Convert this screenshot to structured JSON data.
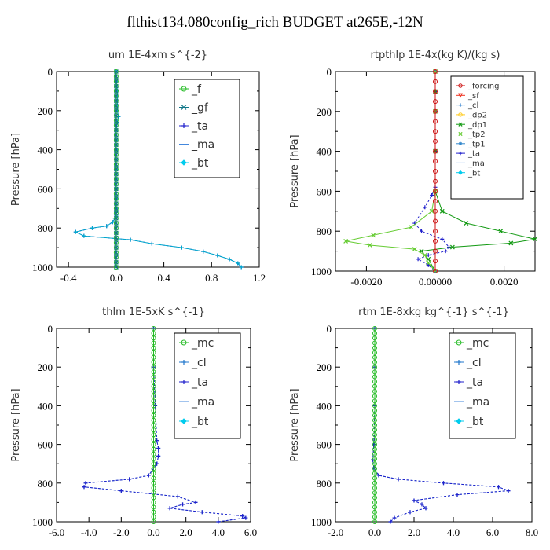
{
  "title": "flthist134.080config_rich  BUDGET at265E,-12N",
  "chart_data": [
    {
      "type": "line",
      "title": "um   1E-4xm s^{-2}",
      "ylabel": "Pressure [hPa]",
      "xlim": [
        -0.5,
        1.2
      ],
      "ylim": [
        1000,
        0
      ],
      "xticks": [
        -0.4,
        0.0,
        0.4,
        0.8,
        1.2
      ],
      "xtick_labels": [
        "-0.4",
        "0.0",
        "0.4",
        "0.8",
        "1.2"
      ],
      "yticks": [
        0,
        200,
        400,
        600,
        800,
        1000
      ],
      "ytick_labels": [
        "0",
        "200",
        "400",
        "600",
        "800",
        "1000"
      ],
      "legend": [
        "_f",
        "_gf",
        "_ta",
        "_ma",
        "_bt"
      ],
      "legend_position": "top-right",
      "series": [
        {
          "name": "_ta",
          "color": "#2020cc",
          "dash": true,
          "marker": "plus",
          "x": [
            0.0,
            0.0,
            0.01,
            0.01,
            0.01,
            0.02,
            0.01,
            0.0,
            0.0,
            0.0,
            0.0,
            0.0,
            0.0,
            0.0,
            0.0,
            0.0,
            0.0,
            0.0,
            0.0,
            -0.01,
            -0.03,
            -0.08,
            -0.2,
            -0.34,
            -0.27,
            0.12,
            0.3,
            0.55,
            0.73,
            0.85,
            0.95,
            1.02,
            1.05
          ],
          "y": [
            0,
            50,
            100,
            150,
            200,
            230,
            260,
            300,
            350,
            400,
            450,
            500,
            550,
            600,
            650,
            680,
            700,
            720,
            740,
            750,
            770,
            790,
            800,
            820,
            840,
            860,
            880,
            900,
            920,
            940,
            960,
            980,
            1000
          ]
        },
        {
          "name": "_bt",
          "color": "#00aacc",
          "dash": false,
          "marker": "plus",
          "x": [
            0.0,
            0.0,
            0.01,
            0.01,
            0.01,
            0.02,
            0.01,
            0.0,
            0.0,
            0.0,
            0.0,
            0.0,
            0.0,
            0.0,
            0.0,
            0.0,
            0.0,
            0.0,
            0.0,
            -0.01,
            -0.03,
            -0.08,
            -0.2,
            -0.34,
            -0.27,
            0.12,
            0.3,
            0.55,
            0.73,
            0.85,
            0.95,
            1.02,
            1.05
          ],
          "y": [
            0,
            50,
            100,
            150,
            200,
            230,
            260,
            300,
            350,
            400,
            450,
            500,
            550,
            600,
            650,
            680,
            700,
            720,
            740,
            750,
            770,
            790,
            800,
            820,
            840,
            860,
            880,
            900,
            920,
            940,
            960,
            980,
            1000
          ]
        },
        {
          "name": "_f",
          "color": "#22bb22",
          "dash": false,
          "marker": "circle",
          "x": [
            0,
            0,
            0,
            0,
            0,
            0,
            0,
            0,
            0,
            0,
            0,
            0,
            0,
            0,
            0,
            0,
            0,
            0,
            0,
            0,
            0,
            0,
            0,
            0,
            0,
            0,
            0,
            0,
            0,
            0,
            0,
            0,
            0,
            0,
            0,
            0,
            0,
            0,
            0,
            0,
            0
          ],
          "y": [
            0,
            25,
            50,
            75,
            100,
            125,
            150,
            175,
            200,
            225,
            250,
            275,
            300,
            325,
            350,
            375,
            400,
            425,
            450,
            475,
            500,
            525,
            550,
            575,
            600,
            625,
            650,
            675,
            700,
            725,
            750,
            775,
            800,
            825,
            850,
            875,
            900,
            925,
            950,
            975,
            1000
          ]
        },
        {
          "name": "_gf",
          "color": "#117788",
          "dash": false,
          "marker": "cross",
          "x": [
            0,
            0,
            0,
            0,
            0,
            0,
            0,
            0,
            0,
            0,
            0,
            0,
            0,
            0,
            0,
            0,
            0,
            0,
            0,
            0,
            0,
            0,
            0,
            0,
            0,
            0,
            0,
            0,
            0,
            0,
            0,
            0,
            0,
            0,
            0,
            0,
            0,
            0,
            0,
            0,
            0
          ],
          "y": [
            0,
            25,
            50,
            75,
            100,
            125,
            150,
            175,
            200,
            225,
            250,
            275,
            300,
            325,
            350,
            375,
            400,
            425,
            450,
            475,
            500,
            525,
            550,
            575,
            600,
            625,
            650,
            675,
            700,
            725,
            750,
            775,
            800,
            825,
            850,
            875,
            900,
            925,
            950,
            975,
            1000
          ]
        }
      ]
    },
    {
      "type": "line",
      "title": "rtpthlp   1E-4x(kg K)/(kg s)",
      "ylabel": "Pressure [hPa]",
      "xlim": [
        -0.0029,
        0.0029
      ],
      "ylim": [
        1000,
        0
      ],
      "xticks": [
        -0.002,
        0.0,
        0.002
      ],
      "xtick_labels": [
        "-0.0020",
        "0.00000",
        "0.0020"
      ],
      "yticks": [
        0,
        200,
        400,
        600,
        800,
        1000
      ],
      "ytick_labels": [
        "0",
        "200",
        "400",
        "600",
        "800",
        "1000"
      ],
      "legend": [
        "_forcing",
        "_sf",
        "_cl",
        "_dp2",
        "_dp1",
        "_tp2",
        "_tp1",
        "_ta",
        "_ma",
        "_bt"
      ],
      "legend_position": "top-right",
      "series": [
        {
          "name": "_ta",
          "color": "#2020cc",
          "dash": true,
          "marker": "plus",
          "x": [
            0,
            0,
            0,
            0,
            0,
            -0.0001,
            -0.0003,
            -0.0006,
            -0.0004,
            0.0002,
            0.0004,
            0.0003,
            -0.0002,
            -0.0005,
            -0.0002,
            0.0
          ],
          "y": [
            0,
            100,
            200,
            400,
            580,
            620,
            680,
            760,
            800,
            840,
            880,
            900,
            920,
            940,
            970,
            1000
          ]
        },
        {
          "name": "_dp1",
          "color": "#119911",
          "dash": false,
          "marker": "cross",
          "x": [
            0,
            0,
            0,
            0,
            0,
            0.0002,
            0.0009,
            0.0019,
            0.0029,
            0.0022,
            0.0005,
            -0.0004,
            -0.0002,
            0.0
          ],
          "y": [
            0,
            100,
            200,
            400,
            600,
            700,
            760,
            800,
            840,
            860,
            880,
            900,
            940,
            1000
          ]
        },
        {
          "name": "_tp2",
          "color": "#66cc33",
          "dash": false,
          "marker": "cross",
          "x": [
            0,
            0,
            0,
            -0.0001,
            -0.0007,
            -0.0018,
            -0.0026,
            -0.0019,
            -0.0006,
            -0.0003,
            -0.0002,
            0.0
          ],
          "y": [
            0,
            200,
            600,
            700,
            780,
            820,
            850,
            870,
            890,
            920,
            960,
            1000
          ]
        },
        {
          "name": "_forcing",
          "color": "#cc1111",
          "dash": false,
          "marker": "circle",
          "x": [
            0,
            0,
            0,
            0,
            0,
            0,
            0,
            0,
            0,
            0,
            0,
            0,
            0,
            0,
            0,
            0,
            0,
            0,
            0,
            0,
            0
          ],
          "y": [
            0,
            50,
            100,
            150,
            200,
            250,
            300,
            350,
            400,
            450,
            500,
            550,
            600,
            650,
            700,
            750,
            800,
            850,
            900,
            950,
            1000
          ]
        }
      ]
    },
    {
      "type": "line",
      "title": "thlm   1E-5xK s^{-1}",
      "ylabel": "Pressure [hPa]",
      "xlim": [
        -6.0,
        6.0
      ],
      "ylim": [
        1000,
        0
      ],
      "xticks": [
        -6,
        -4,
        -2,
        0,
        2,
        4,
        6
      ],
      "xtick_labels": [
        "-6.0",
        "-4.0",
        "-2.0",
        "0.0",
        "2.0",
        "4.0",
        "6.0"
      ],
      "yticks": [
        0,
        200,
        400,
        600,
        800,
        1000
      ],
      "ytick_labels": [
        "0",
        "200",
        "400",
        "600",
        "800",
        "1000"
      ],
      "legend": [
        "_mc",
        "_cl",
        "_ta",
        "_ma",
        "_bt"
      ],
      "legend_position": "top-right",
      "series": [
        {
          "name": "_cl",
          "color": "#2277cc",
          "dash": true,
          "marker": "plus",
          "x": [
            0.0,
            0.0,
            0.1,
            0.2,
            0.3,
            0.3,
            0.2,
            -0.3,
            -1.5,
            -4.2,
            -4.3,
            -2.0,
            1.5,
            2.6,
            1.8,
            1.0,
            3.0,
            5.5,
            5.7,
            4.0
          ],
          "y": [
            0,
            200,
            400,
            580,
            620,
            660,
            700,
            760,
            780,
            800,
            820,
            840,
            870,
            900,
            910,
            930,
            950,
            970,
            980,
            1000
          ]
        },
        {
          "name": "_ta",
          "color": "#2020cc",
          "dash": true,
          "marker": "plus",
          "x": [
            0.0,
            0.0,
            0.1,
            0.2,
            0.3,
            0.3,
            0.2,
            -0.3,
            -1.5,
            -4.2,
            -4.3,
            -2.0,
            1.5,
            2.6,
            1.8,
            1.0,
            3.0,
            5.5,
            5.7,
            4.0
          ],
          "y": [
            0,
            200,
            400,
            580,
            620,
            660,
            700,
            760,
            780,
            800,
            820,
            840,
            870,
            900,
            910,
            930,
            950,
            970,
            980,
            1000
          ]
        },
        {
          "name": "_mc",
          "color": "#22bb22",
          "dash": false,
          "marker": "circle",
          "x": [
            0,
            0,
            0,
            0,
            0,
            0,
            0,
            0,
            0,
            0,
            0,
            0,
            0,
            0,
            0,
            0,
            0,
            0,
            0,
            0,
            0,
            0,
            0,
            0,
            0,
            0,
            0,
            0,
            0,
            0,
            0,
            0,
            0,
            0,
            0,
            0,
            0,
            0,
            0,
            0,
            0
          ],
          "y": [
            0,
            25,
            50,
            75,
            100,
            125,
            150,
            175,
            200,
            225,
            250,
            275,
            300,
            325,
            350,
            375,
            400,
            425,
            450,
            475,
            500,
            525,
            550,
            575,
            600,
            625,
            650,
            675,
            700,
            725,
            750,
            775,
            800,
            825,
            850,
            875,
            900,
            925,
            950,
            975,
            1000
          ]
        }
      ]
    },
    {
      "type": "line",
      "title": "rtm   1E-8xkg kg^{-1} s^{-1}",
      "ylabel": "Pressure [hPa]",
      "xlim": [
        -2.0,
        8.0
      ],
      "ylim": [
        1000,
        0
      ],
      "xticks": [
        -2,
        0,
        2,
        4,
        6,
        8
      ],
      "xtick_labels": [
        "-2.0",
        "0.0",
        "2.0",
        "4.0",
        "6.0",
        "8.0"
      ],
      "yticks": [
        0,
        200,
        400,
        600,
        800,
        1000
      ],
      "ytick_labels": [
        "0",
        "200",
        "400",
        "600",
        "800",
        "1000"
      ],
      "legend": [
        "_mc",
        "_cl",
        "_ta",
        "_ma",
        "_bt"
      ],
      "legend_position": "top-right",
      "series": [
        {
          "name": "_cl",
          "color": "#2277cc",
          "dash": true,
          "marker": "plus",
          "x": [
            0.0,
            0.0,
            0.0,
            -0.05,
            -0.1,
            -0.05,
            0.2,
            1.2,
            3.5,
            6.3,
            6.8,
            4.2,
            2.0,
            2.4,
            2.6,
            1.8,
            1.0,
            0.8
          ],
          "y": [
            0,
            200,
            400,
            600,
            680,
            720,
            760,
            780,
            800,
            820,
            840,
            860,
            890,
            910,
            930,
            950,
            980,
            1000
          ]
        },
        {
          "name": "_ta",
          "color": "#2020cc",
          "dash": true,
          "marker": "plus",
          "x": [
            0.0,
            0.0,
            0.0,
            -0.05,
            -0.1,
            -0.05,
            0.2,
            1.2,
            3.5,
            6.3,
            6.8,
            4.2,
            2.0,
            2.4,
            2.6,
            1.8,
            1.0,
            0.8
          ],
          "y": [
            0,
            200,
            400,
            600,
            680,
            720,
            760,
            780,
            800,
            820,
            840,
            860,
            890,
            910,
            930,
            950,
            980,
            1000
          ]
        },
        {
          "name": "_mc",
          "color": "#22bb22",
          "dash": false,
          "marker": "circle",
          "x": [
            0,
            0,
            0,
            0,
            0,
            0,
            0,
            0,
            0,
            0,
            0,
            0,
            0,
            0,
            0,
            0,
            0,
            0,
            0,
            0,
            0,
            0,
            0,
            0,
            0,
            0,
            0,
            0,
            0,
            0,
            0,
            0,
            0,
            0,
            0,
            0,
            0,
            0,
            0,
            0,
            0
          ],
          "y": [
            0,
            25,
            50,
            75,
            100,
            125,
            150,
            175,
            200,
            225,
            250,
            275,
            300,
            325,
            350,
            375,
            400,
            425,
            450,
            475,
            500,
            525,
            550,
            575,
            600,
            625,
            650,
            675,
            700,
            725,
            750,
            775,
            800,
            825,
            850,
            875,
            900,
            925,
            950,
            975,
            1000
          ]
        }
      ]
    }
  ],
  "legend_styles": {
    "_f": {
      "color": "#22bb22",
      "marker": "circle"
    },
    "_gf": {
      "color": "#117788",
      "marker": "cross"
    },
    "_ta": {
      "color": "#2020cc",
      "marker": "plus"
    },
    "_ma": {
      "color": "#4488dd",
      "marker": "none"
    },
    "_bt": {
      "color": "#00ccee",
      "marker": "diamond"
    },
    "_mc": {
      "color": "#22bb22",
      "marker": "circle"
    },
    "_cl": {
      "color": "#2277cc",
      "marker": "plus"
    },
    "_forcing": {
      "color": "#cc1111",
      "marker": "circle"
    },
    "_sf": {
      "color": "#ee3322",
      "marker": "triangle"
    },
    "_dp2": {
      "color": "#ffcc22",
      "marker": "circle"
    },
    "_dp1": {
      "color": "#119911",
      "marker": "cross"
    },
    "_tp2": {
      "color": "#66cc33",
      "marker": "cross"
    },
    "_tp1": {
      "color": "#3388cc",
      "marker": "star"
    }
  }
}
